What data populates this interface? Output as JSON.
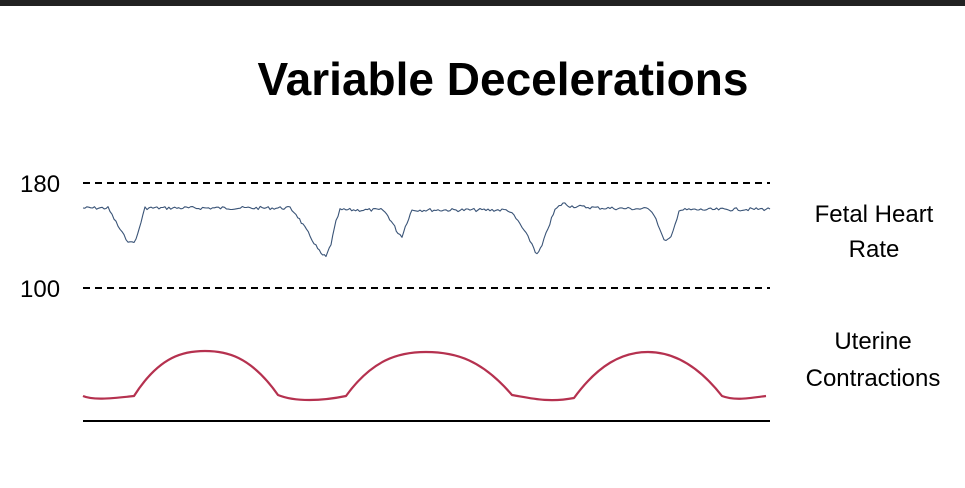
{
  "title": "Variable Decelerations",
  "fhr": {
    "upper_value": "180",
    "lower_value": "100",
    "label_line1": "Fetal Heart",
    "label_line2": "Rate",
    "color": "#3a5477"
  },
  "contractions": {
    "label_line1": "Uterine",
    "label_line2": "Contractions",
    "color": "#b5314f"
  },
  "colors": {
    "top_bar": "#222222",
    "guide_lines": "#000000"
  }
}
